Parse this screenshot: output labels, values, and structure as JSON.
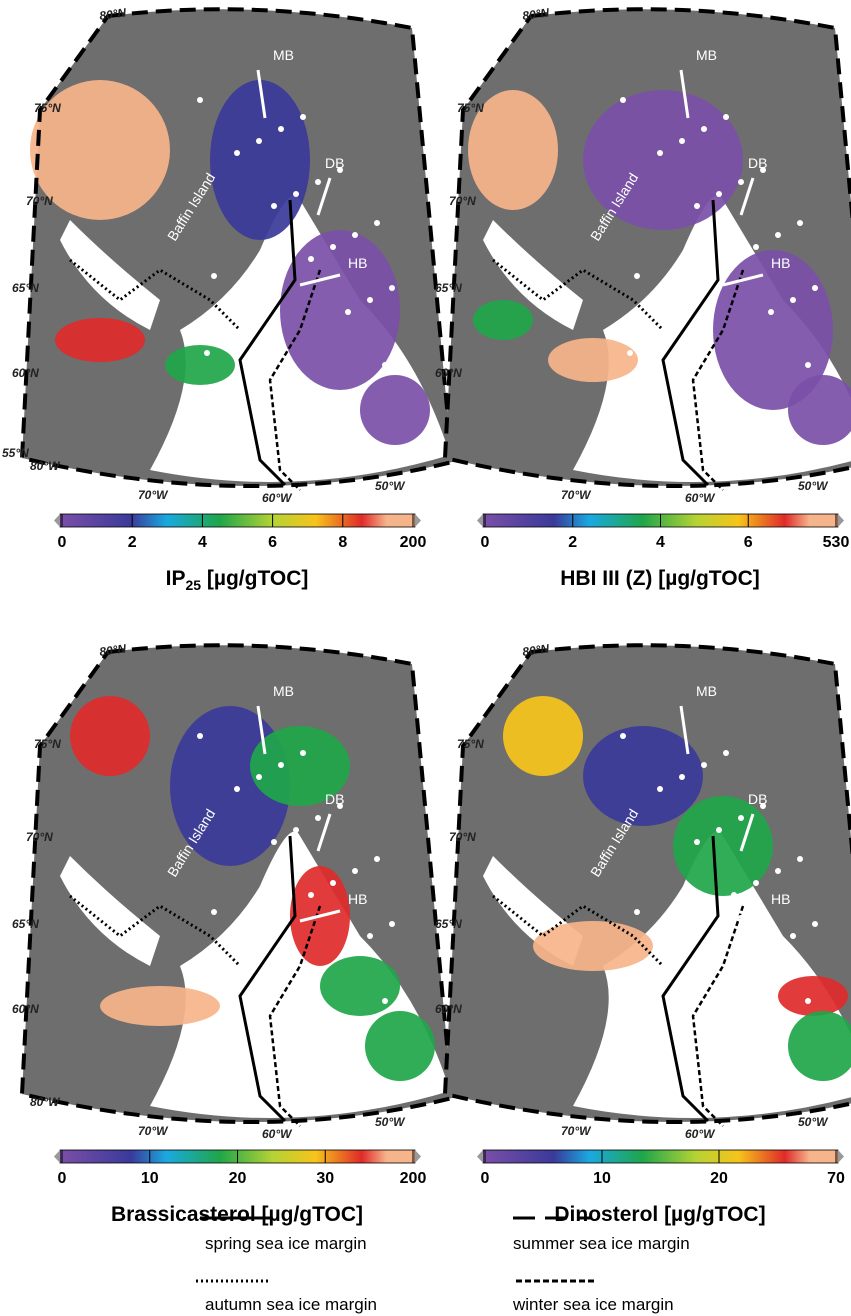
{
  "panels": [
    {
      "lat_labels": [
        "80°N",
        "75°N",
        "70°N",
        "65°N",
        "60°N",
        "55°N"
      ],
      "lon_labels": [
        "80°W",
        "70°W",
        "60°W",
        "50°W"
      ],
      "regions": [
        "MB",
        "DB",
        "HB",
        "Baffin Island"
      ],
      "colorbar": {
        "ticks": [
          "0",
          "2",
          "4",
          "6",
          "8",
          "200"
        ],
        "title": "IP",
        "title_sub": "25",
        "title_rest": " [µg/gTOC]"
      }
    },
    {
      "lat_labels": [
        "80°N",
        "75°N",
        "70°N",
        "65°N",
        "60°N"
      ],
      "lon_labels": [
        "70°W",
        "60°W",
        "50°W"
      ],
      "regions": [
        "MB",
        "DB",
        "HB",
        "Baffin Island"
      ],
      "colorbar": {
        "ticks": [
          "0",
          "2",
          "4",
          "6",
          "530"
        ],
        "title": "HBI III (Z) [µg/gTOC]"
      }
    },
    {
      "lat_labels": [
        "80°N",
        "75°N",
        "70°N",
        "65°N",
        "60°N"
      ],
      "lon_labels": [
        "80°W",
        "70°W",
        "60°W",
        "50°W"
      ],
      "regions": [
        "MB",
        "DB",
        "HB",
        "Baffin Island"
      ],
      "colorbar": {
        "ticks": [
          "0",
          "10",
          "20",
          "30",
          "200"
        ],
        "title": "Brassicasterol [µg/gTOC]"
      }
    },
    {
      "lat_labels": [
        "80°N",
        "75°N",
        "70°N",
        "65°N",
        "60°N"
      ],
      "lon_labels": [
        "70°W",
        "60°W",
        "50°W"
      ],
      "regions": [
        "MB",
        "DB",
        "HB",
        "Baffin Island"
      ],
      "colorbar": {
        "ticks": [
          "0",
          "10",
          "20",
          "70"
        ],
        "title": "Dinosterol [µg/gTOC]"
      }
    }
  ],
  "legend": [
    "spring sea ice margin",
    "summer sea ice margin",
    "autumn sea ice margin",
    "winter sea ice margin"
  ]
}
